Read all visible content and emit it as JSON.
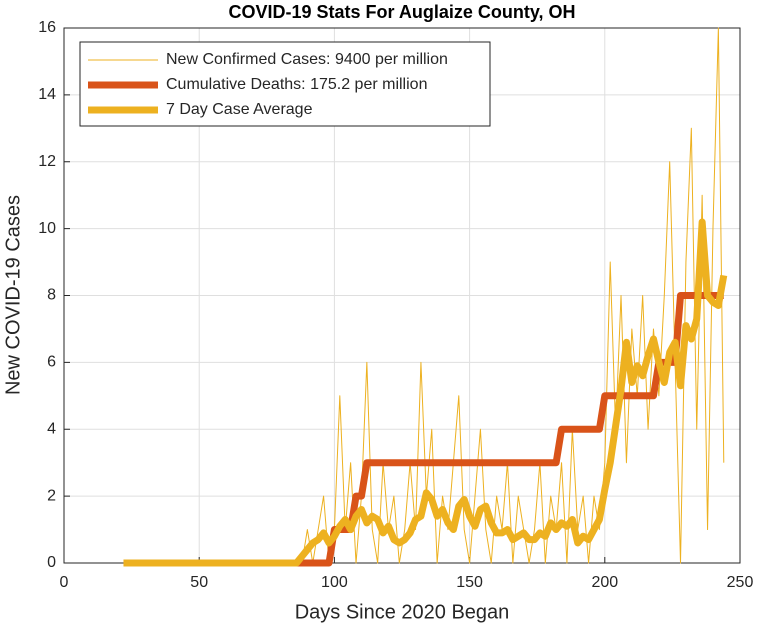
{
  "chart_data": {
    "type": "line",
    "title": "COVID-19 Stats For Auglaize County, OH",
    "x_label": "Days Since 2020 Began",
    "y_label": "New COVID-19 Cases",
    "x": [
      22,
      24,
      26,
      28,
      30,
      32,
      34,
      36,
      38,
      40,
      42,
      44,
      46,
      48,
      50,
      52,
      54,
      56,
      58,
      60,
      62,
      64,
      66,
      68,
      70,
      72,
      74,
      76,
      78,
      80,
      82,
      84,
      86,
      88,
      90,
      92,
      94,
      96,
      98,
      100,
      102,
      104,
      106,
      108,
      110,
      112,
      114,
      116,
      118,
      120,
      122,
      124,
      126,
      128,
      130,
      132,
      134,
      136,
      138,
      140,
      142,
      144,
      146,
      148,
      150,
      152,
      154,
      156,
      158,
      160,
      162,
      164,
      166,
      168,
      170,
      172,
      174,
      176,
      178,
      180,
      182,
      184,
      186,
      188,
      190,
      192,
      194,
      196,
      198,
      200,
      202,
      204,
      206,
      208,
      210,
      212,
      214,
      216,
      218,
      220,
      222,
      224,
      226,
      228,
      230,
      232,
      234,
      236,
      238,
      240,
      242,
      244
    ],
    "series": [
      {
        "name": "New Confirmed Cases: 9400 per million",
        "color": "#EDB120",
        "values": [
          0,
          0,
          0,
          0,
          0,
          0,
          0,
          0,
          0,
          0,
          0,
          0,
          0,
          0,
          0,
          0,
          0,
          0,
          0,
          0,
          0,
          0,
          0,
          0,
          0,
          0,
          0,
          0,
          0,
          0,
          0,
          0,
          0,
          0,
          1,
          0,
          1,
          2,
          0,
          1,
          5,
          1,
          3,
          0,
          2,
          6,
          1,
          0,
          3,
          1,
          2,
          0,
          1,
          3,
          1,
          6,
          2,
          4,
          0,
          2,
          1,
          3,
          5,
          1,
          0,
          2,
          4,
          1,
          0,
          2,
          1,
          3,
          0,
          2,
          1,
          0,
          1,
          3,
          0,
          2,
          1,
          3,
          0,
          4,
          1,
          2,
          0,
          2,
          1,
          3,
          9,
          4,
          8,
          3,
          7,
          5,
          8,
          4,
          7,
          5,
          8,
          12,
          6,
          0,
          9,
          13,
          4,
          11,
          1,
          10,
          16,
          3
        ]
      },
      {
        "name": "Cumulative Deaths: 175.2 per million",
        "color": "#D95319",
        "values": [
          0,
          0,
          0,
          0,
          0,
          0,
          0,
          0,
          0,
          0,
          0,
          0,
          0,
          0,
          0,
          0,
          0,
          0,
          0,
          0,
          0,
          0,
          0,
          0,
          0,
          0,
          0,
          0,
          0,
          0,
          0,
          0,
          0,
          0,
          0,
          0,
          0,
          0,
          0,
          1,
          1,
          1,
          1,
          2,
          2,
          3,
          3,
          3,
          3,
          3,
          3,
          3,
          3,
          3,
          3,
          3,
          3,
          3,
          3,
          3,
          3,
          3,
          3,
          3,
          3,
          3,
          3,
          3,
          3,
          3,
          3,
          3,
          3,
          3,
          3,
          3,
          3,
          3,
          3,
          3,
          3,
          4,
          4,
          4,
          4,
          4,
          4,
          4,
          4,
          5,
          5,
          5,
          5,
          5,
          5,
          5,
          5,
          5,
          5,
          6,
          6,
          6,
          6,
          8,
          8,
          8,
          8,
          8,
          8,
          8,
          8,
          8
        ]
      },
      {
        "name": "7 Day Case Average",
        "color": "#EDB120",
        "values": [
          0,
          0,
          0,
          0,
          0,
          0,
          0,
          0,
          0,
          0,
          0,
          0,
          0,
          0,
          0,
          0,
          0,
          0,
          0,
          0,
          0,
          0,
          0,
          0,
          0,
          0,
          0,
          0,
          0,
          0,
          0,
          0,
          0,
          0.2,
          0.4,
          0.6,
          0.7,
          0.9,
          0.6,
          0.8,
          1.1,
          1.3,
          1.0,
          1.4,
          1.6,
          1.2,
          1.4,
          1.3,
          0.9,
          1.1,
          0.7,
          0.6,
          0.7,
          0.9,
          1.3,
          1.4,
          2.1,
          1.9,
          1.4,
          1.6,
          1.2,
          1.0,
          1.7,
          1.9,
          1.4,
          1.1,
          1.6,
          1.7,
          1.2,
          0.9,
          0.9,
          1.0,
          0.7,
          0.8,
          0.9,
          0.7,
          0.7,
          0.9,
          0.8,
          1.2,
          1.0,
          1.2,
          1.1,
          1.3,
          0.6,
          0.8,
          0.7,
          1.0,
          1.3,
          2.2,
          3.0,
          4.1,
          5.2,
          6.6,
          5.4,
          5.9,
          5.6,
          6.2,
          6.7,
          6.0,
          5.4,
          6.3,
          6.6,
          5.3,
          7.1,
          6.7,
          7.3,
          10.2,
          8.0,
          7.8,
          7.7,
          8.6
        ]
      }
    ],
    "xlim": [
      0,
      250
    ],
    "xticks": [
      0,
      50,
      100,
      150,
      200,
      250
    ],
    "ylim": [
      0,
      16
    ],
    "yticks": [
      0,
      2,
      4,
      6,
      8,
      10,
      12,
      14,
      16
    ],
    "grid": true,
    "legend": "upper left"
  }
}
